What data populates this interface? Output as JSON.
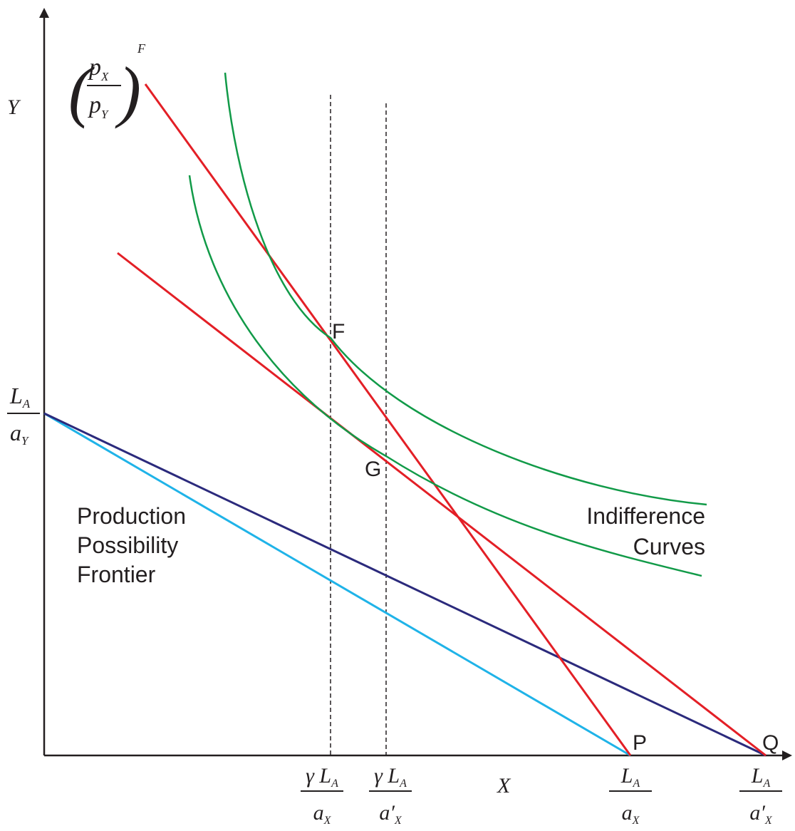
{
  "axes": {
    "x_label": "X",
    "y_label": "Y"
  },
  "price_label": {
    "numerator": "p",
    "numerator_sub": "X",
    "denominator": "p",
    "denominator_sub": "Y",
    "superscript": "F"
  },
  "y_intercept": {
    "numerator": "L",
    "numerator_sub": "A",
    "denominator": "a",
    "denominator_sub": "Y"
  },
  "x_ticks": [
    {
      "numerator": "γ L",
      "numerator_sub": "A",
      "denominator": "a",
      "denominator_prime": "",
      "denominator_sub": "X"
    },
    {
      "numerator": "γ L",
      "numerator_sub": "A",
      "denominator": "a",
      "denominator_prime": "′",
      "denominator_sub": "X"
    },
    {
      "numerator": "L",
      "numerator_sub": "A",
      "denominator": "a",
      "denominator_prime": "",
      "denominator_sub": "X"
    },
    {
      "numerator": "L",
      "numerator_sub": "A",
      "denominator": "a",
      "denominator_prime": "′",
      "denominator_sub": "X"
    }
  ],
  "points": {
    "F": "F",
    "G": "G",
    "P": "P",
    "Q": "Q"
  },
  "labels": {
    "ppf": [
      "Production",
      "Possibility",
      "Frontier"
    ],
    "indifference": [
      "Indifference",
      "Curves"
    ]
  },
  "colors": {
    "axis": "#231f20",
    "ppf_dark": "#2b2a7c",
    "ppf_light": "#1fb3e8",
    "price_lines": "#e31f26",
    "indifference": "#119a48",
    "guides": "#231f20"
  }
}
